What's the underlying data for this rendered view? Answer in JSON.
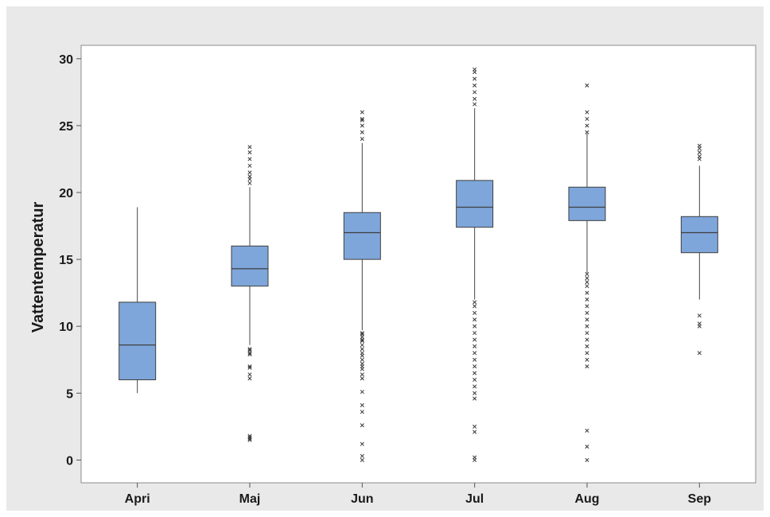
{
  "chart_data": {
    "type": "box",
    "title": "",
    "xlabel": "",
    "ylabel": "Vattentemperatur",
    "ylim": [
      -1.7,
      31.0
    ],
    "yticks": [
      0,
      5,
      10,
      15,
      20,
      25,
      30
    ],
    "categories": [
      "Apri",
      "Maj",
      "Jun",
      "Jul",
      "Aug",
      "Sep"
    ],
    "box_color": "#7ea6da",
    "outlier_color": "#3a3a3a",
    "boxes": [
      {
        "category": "Apri",
        "whisker_low": 5.0,
        "q1": 6.0,
        "median": 8.6,
        "q3": 11.8,
        "whisker_high": 18.9,
        "outliers": []
      },
      {
        "category": "Maj",
        "whisker_low": 8.6,
        "q1": 13.0,
        "median": 14.3,
        "q3": 16.0,
        "whisker_high": 20.4,
        "outliers": [
          1.5,
          1.6,
          1.7,
          1.8,
          6.1,
          6.4,
          6.9,
          7.0,
          7.9,
          8.0,
          8.2,
          8.3,
          20.7,
          21.0,
          21.2,
          21.5,
          22.0,
          22.5,
          23.0,
          23.4
        ]
      },
      {
        "category": "Jun",
        "whisker_low": 9.7,
        "q1": 15.0,
        "median": 17.0,
        "q3": 18.5,
        "whisker_high": 23.7,
        "outliers": [
          0.0,
          0.3,
          1.2,
          2.6,
          3.6,
          4.1,
          5.1,
          6.1,
          6.4,
          6.8,
          7.0,
          7.2,
          7.5,
          7.8,
          8.0,
          8.3,
          8.6,
          8.9,
          9.0,
          9.2,
          9.4,
          9.5,
          24.0,
          24.5,
          25.0,
          25.4,
          25.5,
          26.0
        ]
      },
      {
        "category": "Jul",
        "whisker_low": 12.0,
        "q1": 17.4,
        "median": 18.9,
        "q3": 20.9,
        "whisker_high": 26.3,
        "outliers": [
          0.0,
          0.2,
          2.1,
          2.5,
          4.6,
          5.0,
          5.5,
          6.0,
          6.5,
          7.0,
          7.5,
          8.0,
          8.5,
          9.0,
          9.5,
          10.0,
          10.5,
          11.0,
          11.5,
          11.8,
          26.6,
          27.0,
          27.5,
          28.0,
          28.5,
          29.0,
          29.2
        ]
      },
      {
        "category": "Aug",
        "whisker_low": 14.0,
        "q1": 17.9,
        "median": 18.9,
        "q3": 20.4,
        "whisker_high": 24.4,
        "outliers": [
          0.0,
          1.0,
          2.2,
          7.0,
          7.5,
          8.0,
          8.5,
          9.0,
          9.5,
          10.0,
          10.5,
          11.0,
          11.5,
          12.0,
          12.5,
          13.0,
          13.3,
          13.6,
          13.9,
          24.5,
          25.0,
          25.5,
          26.0,
          28.0
        ]
      },
      {
        "category": "Sep",
        "whisker_low": 12.0,
        "q1": 15.5,
        "median": 17.0,
        "q3": 18.2,
        "whisker_high": 22.0,
        "outliers": [
          8.0,
          10.0,
          10.2,
          10.8,
          22.5,
          22.7,
          23.0,
          23.3,
          23.5
        ]
      }
    ]
  }
}
